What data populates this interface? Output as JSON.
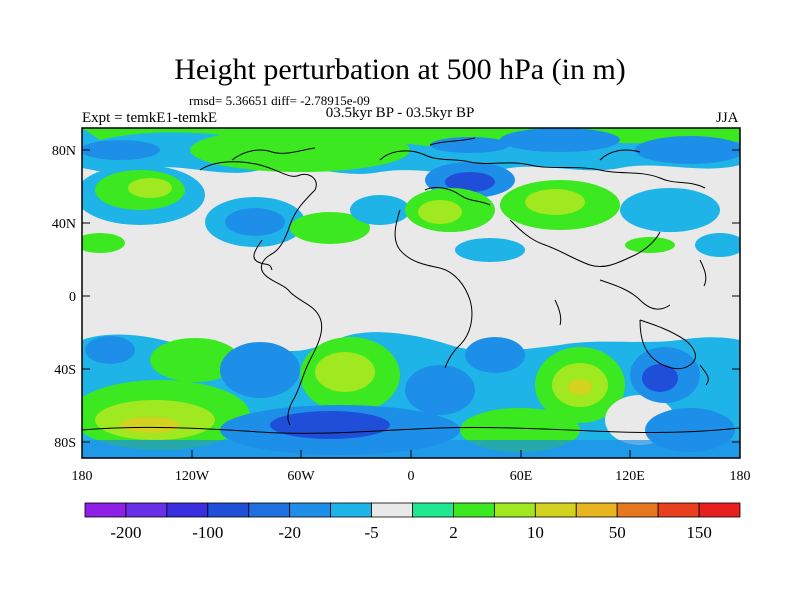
{
  "header": {
    "title": "Height perturbation at 500 hPa (in m)",
    "stats": "rmsd= 5.36651 diff= -2.78915e-09",
    "left_label": "Expt = temkE1-temkE",
    "center_label": "03.5kyr BP - 03.5kyr BP",
    "right_label": "JJA"
  },
  "map": {
    "lat_labels": [
      "80N",
      "40N",
      "0",
      "40S",
      "80S"
    ],
    "lon_labels": [
      "180",
      "120W",
      "60W",
      "0",
      "60E",
      "120E",
      "180"
    ]
  },
  "colorbar": {
    "colors": [
      "#8f1fe6",
      "#6a2fe8",
      "#3a2fe0",
      "#1f4fd8",
      "#1e6fe0",
      "#1e8fe8",
      "#1fb4e8",
      "#e9e9e9",
      "#1fe890",
      "#3ce81f",
      "#a0e81f",
      "#d2d21f",
      "#e8b41f",
      "#e8781f",
      "#e8401f",
      "#e81f1f"
    ],
    "labels": [
      "-200",
      "-100",
      "-20",
      "-5",
      "2",
      "10",
      "50",
      "150"
    ]
  }
}
